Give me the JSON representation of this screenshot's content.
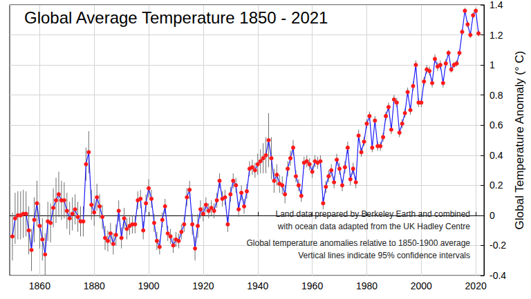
{
  "chart_data": {
    "type": "line",
    "title": "Global Average Temperature 1850 - 2021",
    "y_label": "Global Temperature Anomaly (° C)",
    "annotations": [
      "Land data prepared by Berkeley Earth and combined",
      "with ocean data adapted from the UK Hadley Centre",
      "Global temperature anomalies relative to 1850-1900 average",
      "Vertical lines indicate 95% confidence intervals"
    ],
    "x": [
      1850,
      1851,
      1852,
      1853,
      1854,
      1855,
      1856,
      1857,
      1858,
      1859,
      1860,
      1861,
      1862,
      1863,
      1864,
      1865,
      1866,
      1867,
      1868,
      1869,
      1870,
      1871,
      1872,
      1873,
      1874,
      1875,
      1876,
      1877,
      1878,
      1879,
      1880,
      1881,
      1882,
      1883,
      1884,
      1885,
      1886,
      1887,
      1888,
      1889,
      1890,
      1891,
      1892,
      1893,
      1894,
      1895,
      1896,
      1897,
      1898,
      1899,
      1900,
      1901,
      1902,
      1903,
      1904,
      1905,
      1906,
      1907,
      1908,
      1909,
      1910,
      1911,
      1912,
      1913,
      1914,
      1915,
      1916,
      1917,
      1918,
      1919,
      1920,
      1921,
      1922,
      1923,
      1924,
      1925,
      1926,
      1927,
      1928,
      1929,
      1930,
      1931,
      1932,
      1933,
      1934,
      1935,
      1936,
      1937,
      1938,
      1939,
      1940,
      1941,
      1942,
      1943,
      1944,
      1945,
      1946,
      1947,
      1948,
      1949,
      1950,
      1951,
      1952,
      1953,
      1954,
      1955,
      1956,
      1957,
      1958,
      1959,
      1960,
      1961,
      1962,
      1963,
      1964,
      1965,
      1966,
      1967,
      1968,
      1969,
      1970,
      1971,
      1972,
      1973,
      1974,
      1975,
      1976,
      1977,
      1978,
      1979,
      1980,
      1981,
      1982,
      1983,
      1984,
      1985,
      1986,
      1987,
      1988,
      1989,
      1990,
      1991,
      1992,
      1993,
      1994,
      1995,
      1996,
      1997,
      1998,
      1999,
      2000,
      2001,
      2002,
      2003,
      2004,
      2005,
      2006,
      2007,
      2008,
      2009,
      2010,
      2011,
      2012,
      2013,
      2014,
      2015,
      2016,
      2017,
      2018,
      2019,
      2020,
      2021
    ],
    "values": [
      -0.14,
      -0.02,
      0.0,
      0.0,
      0.01,
      0.01,
      -0.1,
      -0.23,
      -0.03,
      0.08,
      -0.07,
      -0.16,
      -0.26,
      -0.04,
      -0.05,
      0.05,
      0.1,
      0.14,
      0.1,
      0.1,
      0.03,
      -0.02,
      0.01,
      0.04,
      -0.01,
      -0.04,
      -0.04,
      0.34,
      0.42,
      0.07,
      0.02,
      0.12,
      0.06,
      -0.01,
      -0.15,
      -0.17,
      -0.12,
      -0.19,
      -0.13,
      0.03,
      -0.15,
      -0.02,
      -0.09,
      -0.07,
      -0.06,
      -0.06,
      0.1,
      0.11,
      -0.1,
      0.08,
      0.18,
      0.11,
      -0.05,
      -0.17,
      -0.21,
      -0.03,
      0.06,
      -0.12,
      -0.14,
      -0.2,
      -0.16,
      -0.17,
      -0.11,
      -0.06,
      0.12,
      0.17,
      -0.06,
      -0.22,
      -0.07,
      0.04,
      0.01,
      0.07,
      0.03,
      0.05,
      0.03,
      0.1,
      0.23,
      0.11,
      0.12,
      -0.06,
      0.14,
      0.23,
      0.2,
      0.04,
      0.15,
      0.06,
      0.16,
      0.31,
      0.32,
      0.3,
      0.34,
      0.36,
      0.38,
      0.4,
      0.5,
      0.38,
      0.23,
      0.27,
      0.21,
      0.2,
      0.14,
      0.31,
      0.38,
      0.45,
      0.26,
      0.2,
      0.13,
      0.35,
      0.36,
      0.34,
      0.29,
      0.36,
      0.35,
      0.36,
      0.08,
      0.19,
      0.26,
      0.3,
      0.22,
      0.37,
      0.31,
      0.2,
      0.32,
      0.45,
      0.24,
      0.31,
      0.22,
      0.53,
      0.42,
      0.49,
      0.61,
      0.66,
      0.45,
      0.63,
      0.46,
      0.46,
      0.52,
      0.66,
      0.72,
      0.57,
      0.77,
      0.75,
      0.55,
      0.61,
      0.68,
      0.82,
      0.7,
      0.86,
      1.0,
      0.75,
      0.75,
      0.89,
      0.97,
      0.96,
      0.88,
      1.04,
      0.99,
      1.0,
      0.88,
      1.01,
      1.08,
      0.97,
      1.0,
      1.01,
      1.08,
      1.22,
      1.36,
      1.27,
      1.2,
      1.33,
      1.36,
      1.21
    ],
    "errors": [
      0.16,
      0.17,
      0.16,
      0.16,
      0.16,
      0.15,
      0.16,
      0.14,
      0.15,
      0.15,
      0.15,
      0.14,
      0.14,
      0.13,
      0.13,
      0.13,
      0.15,
      0.15,
      0.13,
      0.12,
      0.12,
      0.11,
      0.11,
      0.1,
      0.1,
      0.1,
      0.1,
      0.11,
      0.14,
      0.1,
      0.09,
      0.09,
      0.08,
      0.08,
      0.08,
      0.07,
      0.07,
      0.07,
      0.07,
      0.07,
      0.07,
      0.07,
      0.07,
      0.06,
      0.06,
      0.06,
      0.06,
      0.06,
      0.06,
      0.06,
      0.06,
      0.06,
      0.06,
      0.06,
      0.05,
      0.05,
      0.05,
      0.05,
      0.05,
      0.05,
      0.05,
      0.05,
      0.05,
      0.05,
      0.06,
      0.06,
      0.07,
      0.08,
      0.08,
      0.06,
      0.05,
      0.05,
      0.05,
      0.05,
      0.05,
      0.05,
      0.05,
      0.05,
      0.05,
      0.05,
      0.05,
      0.05,
      0.05,
      0.05,
      0.05,
      0.05,
      0.05,
      0.05,
      0.05,
      0.05,
      0.07,
      0.08,
      0.1,
      0.12,
      0.18,
      0.14,
      0.08,
      0.07,
      0.06,
      0.06,
      0.06,
      0.05,
      0.05,
      0.05,
      0.04,
      0.04,
      0.04,
      0.04,
      0.04,
      0.04,
      0.04,
      0.04,
      0.04,
      0.04,
      0.04,
      0.04,
      0.04,
      0.04,
      0.04,
      0.04,
      0.04,
      0.04,
      0.04,
      0.04,
      0.04,
      0.04,
      0.04,
      0.04,
      0.03,
      0.03,
      0.03,
      0.03,
      0.03,
      0.03,
      0.03,
      0.03,
      0.03,
      0.03,
      0.03,
      0.03,
      0.03,
      0.03,
      0.03,
      0.03,
      0.03,
      0.03,
      0.03,
      0.03,
      0.03,
      0.03,
      0.03,
      0.03,
      0.03,
      0.03,
      0.03,
      0.03,
      0.03,
      0.03,
      0.03,
      0.03,
      0.02,
      0.02,
      0.02,
      0.02,
      0.02,
      0.02,
      0.02,
      0.02,
      0.02,
      0.02,
      0.02,
      0.02
    ],
    "color": "#1a1aff",
    "marker": "circle",
    "xlim": [
      1849,
      2023
    ],
    "xticks": [
      1860,
      1880,
      1900,
      1920,
      1940,
      1960,
      1980,
      2000,
      2020
    ],
    "ylim": [
      -0.4,
      1.4
    ],
    "yticks": [
      -0.4,
      -0.2,
      0,
      0.2,
      0.4,
      0.6,
      0.8,
      1,
      1.2,
      1.4
    ],
    "grid": true
  }
}
